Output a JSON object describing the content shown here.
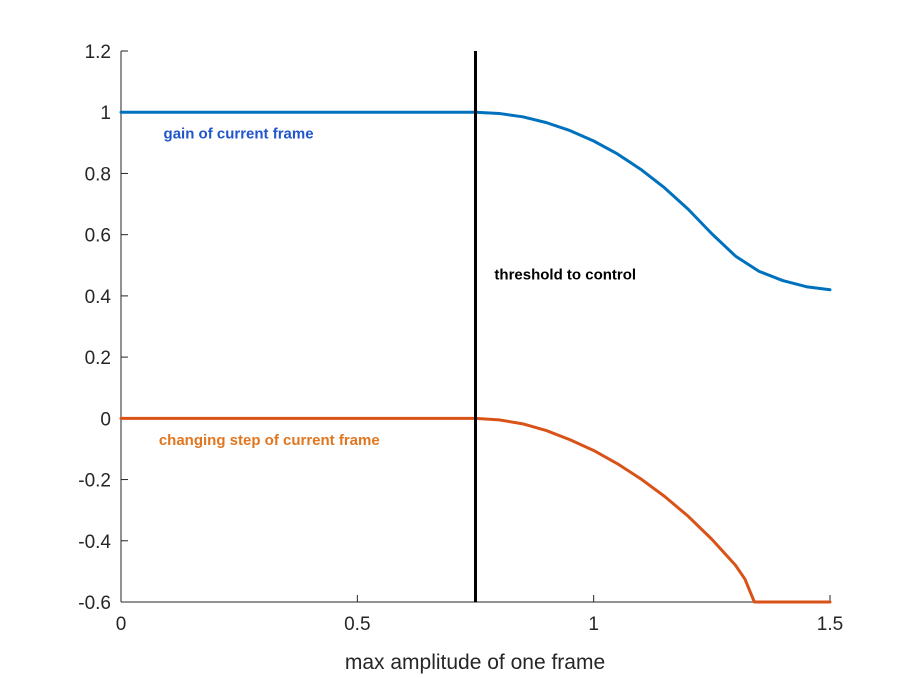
{
  "chart_data": {
    "type": "line",
    "title": "",
    "xlabel": "max amplitude of one frame",
    "ylabel": "",
    "xlim": [
      0,
      1.5
    ],
    "ylim": [
      -0.6,
      1.2
    ],
    "grid": false,
    "xticks": [
      0,
      0.5,
      1,
      1.5
    ],
    "xtick_labels": [
      "0",
      "0.5",
      "1",
      "1.5"
    ],
    "yticks": [
      -0.6,
      -0.4,
      -0.2,
      0,
      0.2,
      0.4,
      0.6,
      0.8,
      1,
      1.2
    ],
    "ytick_labels": [
      "-0.6",
      "-0.4",
      "-0.2",
      "0",
      "0.2",
      "0.4",
      "0.6",
      "0.8",
      "1",
      "1.2"
    ],
    "series": [
      {
        "color": "#0072BD",
        "x": [
          0,
          0.75,
          0.8,
          0.85,
          0.9,
          0.95,
          1.0,
          1.05,
          1.1,
          1.15,
          1.2,
          1.25,
          1.3,
          1.35,
          1.4,
          1.45,
          1.5
        ],
        "y": [
          1,
          1,
          0.996,
          0.985,
          0.966,
          0.94,
          0.906,
          0.864,
          0.813,
          0.753,
          0.683,
          0.603,
          0.53,
          0.48,
          0.45,
          0.43,
          0.42
        ]
      },
      {
        "color": "#D95319",
        "x": [
          0,
          0.75,
          0.8,
          0.85,
          0.9,
          0.95,
          1.0,
          1.05,
          1.1,
          1.15,
          1.2,
          1.25,
          1.3,
          1.32,
          1.34,
          1.4,
          1.45,
          1.5
        ],
        "y": [
          0,
          0,
          -0.005,
          -0.018,
          -0.04,
          -0.07,
          -0.105,
          -0.148,
          -0.198,
          -0.255,
          -0.32,
          -0.395,
          -0.48,
          -0.525,
          -0.6,
          -0.6,
          -0.6,
          -0.6
        ]
      }
    ],
    "vline": {
      "x": 0.75,
      "color": "#000000"
    },
    "annotations": [
      {
        "text": "gain of current frame",
        "x": 0.09,
        "y": 0.93,
        "color": "#2155CD"
      },
      {
        "text": "threshold to control",
        "x": 0.79,
        "y": 0.47,
        "color": "#000000"
      },
      {
        "text": "changing step of current frame",
        "x": 0.08,
        "y": -0.07,
        "color": "#E0761F"
      }
    ]
  }
}
